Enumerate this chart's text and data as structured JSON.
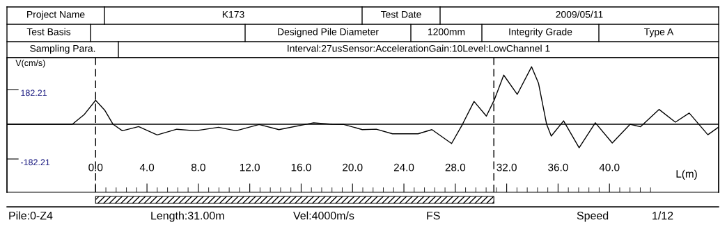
{
  "chart_data": {
    "type": "line",
    "xlabel": "L(m)",
    "ylabel": "V(cm/s)",
    "x": [
      -6.85,
      -1.81,
      -0.9,
      0.0,
      0.7,
      1.36,
      2.08,
      3.35,
      4.79,
      6.32,
      7.77,
      9.57,
      10.93,
      12.73,
      14.27,
      16.97,
      18.42,
      19.32,
      20.76,
      21.85,
      23.11,
      25.1,
      26.18,
      27.71,
      28.56,
      29.46,
      30.42,
      31.05,
      31.77,
      32.82,
      33.94,
      34.48,
      35.11,
      35.47,
      36.43,
      37.64,
      38.9,
      40.22,
      41.61,
      42.42,
      43.86,
      45.13,
      46.21,
      47.66,
      48.47
    ],
    "series": [
      {
        "color": "#000000",
        "values": [
          0,
          0,
          50,
          126,
          75,
          0,
          -34,
          -12,
          -56,
          -26,
          -34,
          -16,
          -34,
          -1,
          -28,
          8,
          0,
          -1,
          -28,
          -26,
          -50,
          -50,
          -28,
          -101,
          0,
          120,
          43,
          130,
          258,
          157,
          302,
          215,
          0,
          -62,
          18,
          -123,
          8,
          -98,
          0,
          -13,
          78,
          11,
          59,
          -55,
          -16
        ]
      }
    ],
    "xlim": [
      -6.9,
      48.5
    ],
    "ylim": [
      -357,
      350
    ],
    "xticks": [
      {
        "value": 0,
        "label": "0.0"
      },
      {
        "value": 0.8,
        "label": null
      },
      {
        "value": 1.6,
        "label": null
      },
      {
        "value": 2.4,
        "label": null
      },
      {
        "value": 3.2,
        "label": null
      },
      {
        "value": 4,
        "label": "4.0"
      },
      {
        "value": 4.8,
        "label": null
      },
      {
        "value": 5.6,
        "label": null
      },
      {
        "value": 6.4,
        "label": null
      },
      {
        "value": 7.2,
        "label": null
      },
      {
        "value": 8,
        "label": "8.0"
      },
      {
        "value": 8.8,
        "label": null
      },
      {
        "value": 9.6,
        "label": null
      },
      {
        "value": 10.4,
        "label": null
      },
      {
        "value": 11.2,
        "label": null
      },
      {
        "value": 12,
        "label": "12.0"
      },
      {
        "value": 12.8,
        "label": null
      },
      {
        "value": 13.6,
        "label": null
      },
      {
        "value": 14.4,
        "label": null
      },
      {
        "value": 15.2,
        "label": null
      },
      {
        "value": 16,
        "label": "16.0"
      },
      {
        "value": 16.8,
        "label": null
      },
      {
        "value": 17.6,
        "label": null
      },
      {
        "value": 18.4,
        "label": null
      },
      {
        "value": 19.2,
        "label": null
      },
      {
        "value": 20,
        "label": "20.0"
      },
      {
        "value": 20.8,
        "label": null
      },
      {
        "value": 21.6,
        "label": null
      },
      {
        "value": 22.4,
        "label": null
      },
      {
        "value": 23.2,
        "label": null
      },
      {
        "value": 24,
        "label": "24.0"
      },
      {
        "value": 24.8,
        "label": null
      },
      {
        "value": 25.6,
        "label": null
      },
      {
        "value": 26.4,
        "label": null
      },
      {
        "value": 27.2,
        "label": null
      },
      {
        "value": 28,
        "label": "28.0"
      },
      {
        "value": 28.8,
        "label": null
      },
      {
        "value": 29.6,
        "label": null
      },
      {
        "value": 30.4,
        "label": null
      },
      {
        "value": 31.2,
        "label": null
      },
      {
        "value": 32,
        "label": "32.0"
      },
      {
        "value": 32.8,
        "label": null
      },
      {
        "value": 33.6,
        "label": null
      },
      {
        "value": 34.4,
        "label": null
      },
      {
        "value": 35.2,
        "label": null
      },
      {
        "value": 36,
        "label": "36.0"
      },
      {
        "value": 36.8,
        "label": null
      },
      {
        "value": 37.6,
        "label": null
      },
      {
        "value": 38.4,
        "label": null
      },
      {
        "value": 39.2,
        "label": null
      },
      {
        "value": 40,
        "label": "40.0"
      },
      {
        "value": 40.8,
        "label": null
      },
      {
        "value": 41.6,
        "label": null
      },
      {
        "value": 42.4,
        "label": null
      },
      {
        "value": 43.2,
        "label": null
      }
    ],
    "yticks": [
      182.21,
      -182.21
    ],
    "ref_lines": [
      {
        "axis": "y",
        "value": 0,
        "color": "#000000",
        "line_style": "solid"
      },
      {
        "axis": "x",
        "value": 0,
        "color": "#000000",
        "line_style": "dashed"
      },
      {
        "axis": "x",
        "value": 31.0,
        "color": "#000000",
        "line_style": "dashed"
      }
    ],
    "grid": false,
    "legend": false,
    "marker": "none",
    "line_style": "solid",
    "annotations": [
      "Project Name",
      "K173",
      "Test Date",
      "2009/05/11",
      "Test Basis",
      "Designed Pile Diameter",
      "1200mm",
      "Integrity Grade",
      "Type A",
      "Sampling Para.",
      "Interval:27usSensor:AccelerationGain:10Level:LowChannel 1",
      "Pile:0-Z4",
      "Length:31.00m",
      "Vel:4000m/s",
      "FS",
      "Speed",
      "1/12"
    ]
  }
}
